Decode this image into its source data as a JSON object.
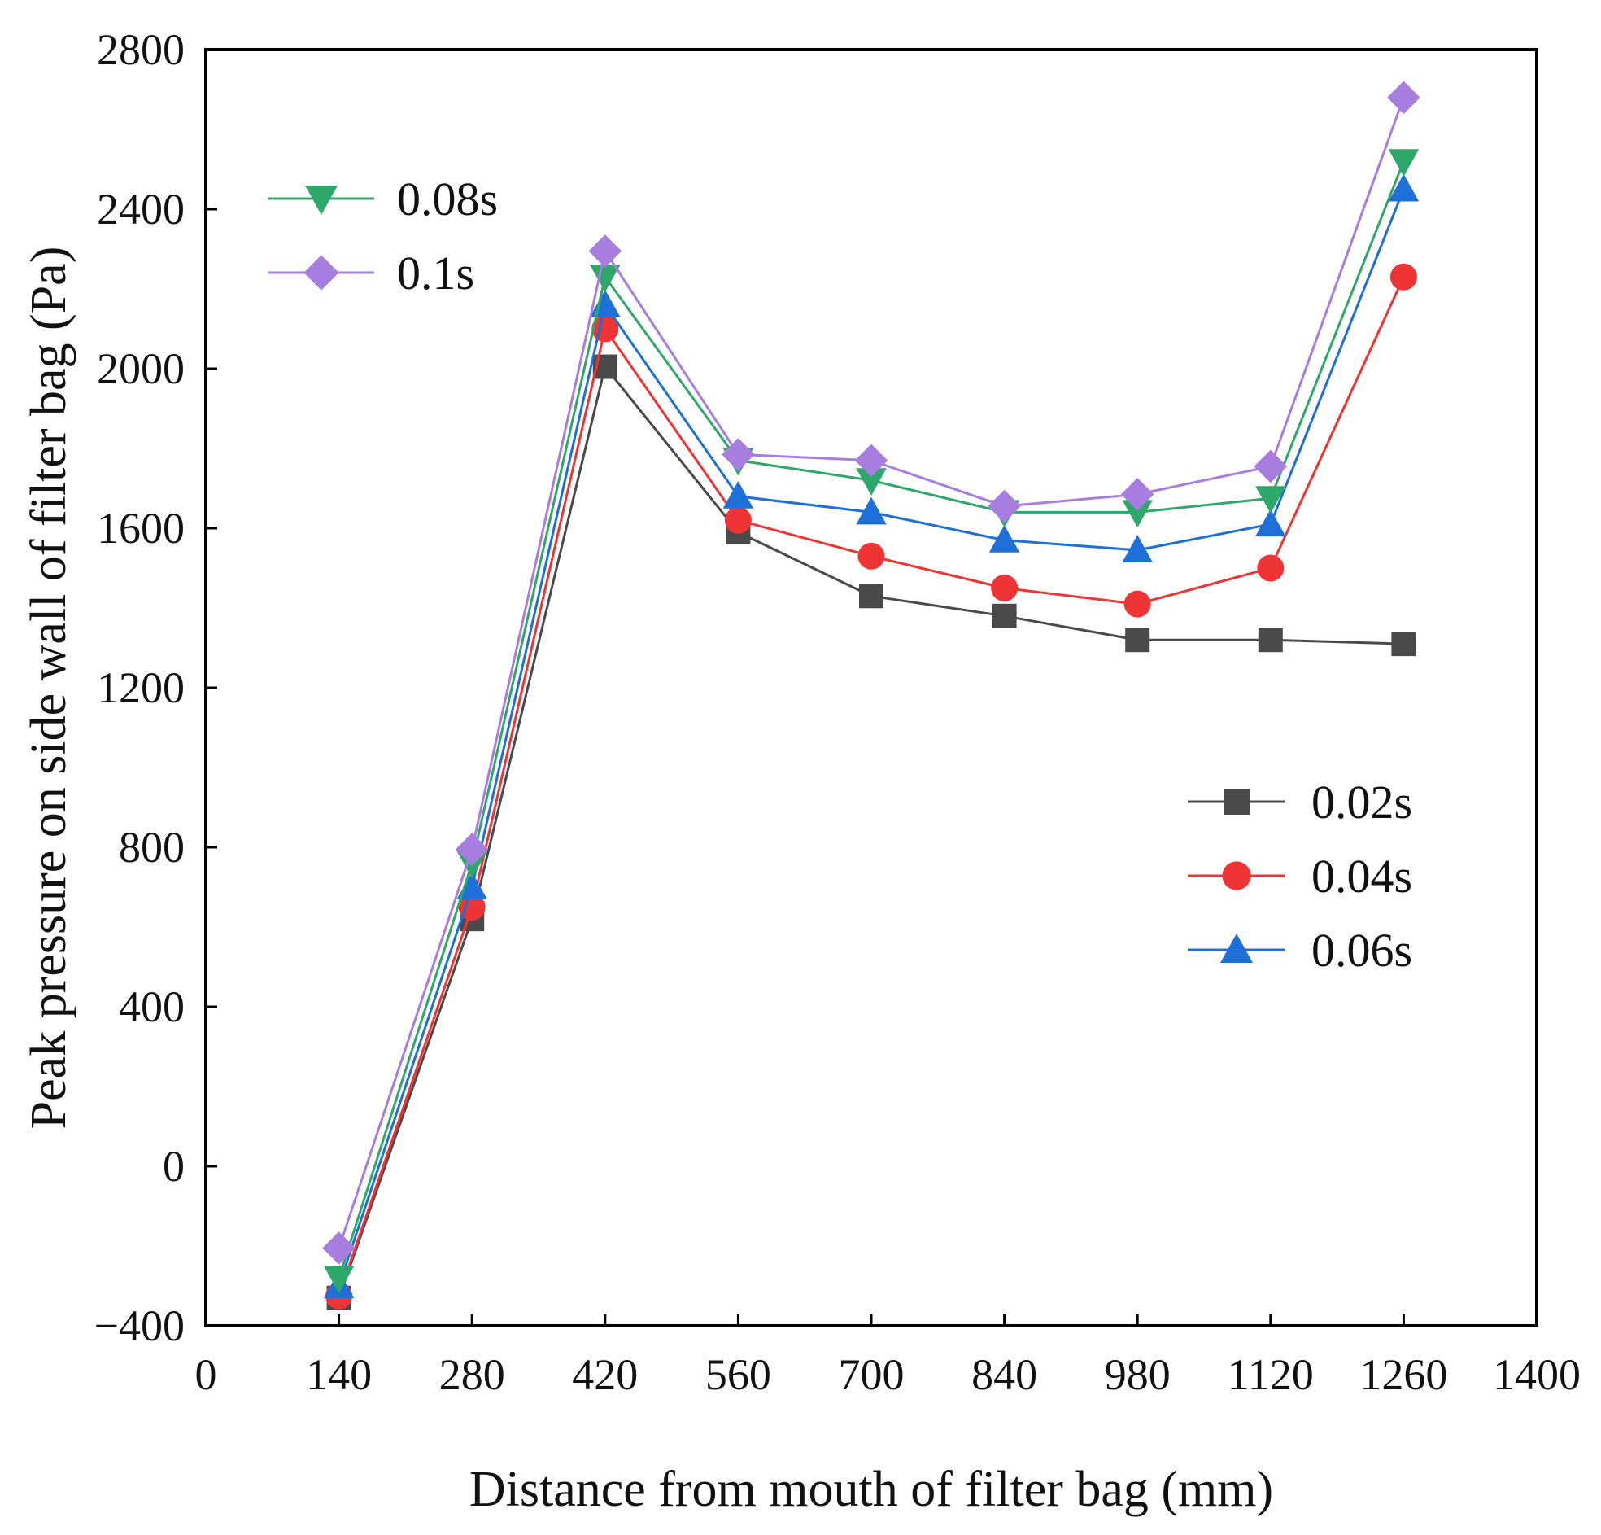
{
  "chart_data": {
    "type": "line",
    "title": "",
    "xlabel": "Distance from mouth of filter bag (mm)",
    "ylabel": "Peak pressure on side wall of filter bag (Pa)",
    "xlim": [
      0,
      1400
    ],
    "ylim": [
      -400,
      2800
    ],
    "xticks": [
      0,
      140,
      280,
      420,
      560,
      700,
      840,
      980,
      1120,
      1260,
      1400
    ],
    "yticks": [
      -400,
      0,
      400,
      800,
      1200,
      1600,
      2000,
      2400,
      2800
    ],
    "xtick_labels": [
      "0",
      "140",
      "280",
      "420",
      "560",
      "700",
      "840",
      "980",
      "1120",
      "1260",
      "1400"
    ],
    "ytick_labels": [
      "−400",
      "0",
      "400",
      "800",
      "1200",
      "1600",
      "2000",
      "2400",
      "2800"
    ],
    "grid": false,
    "x": [
      140,
      280,
      420,
      560,
      700,
      840,
      980,
      1120,
      1260
    ],
    "series": [
      {
        "name": "0.02s",
        "marker": "square",
        "color": "#4a4a4a",
        "values": [
          -330,
          620,
          2005,
          1590,
          1430,
          1380,
          1320,
          1320,
          1310
        ]
      },
      {
        "name": "0.04s",
        "marker": "circle",
        "color": "#ee3434",
        "values": [
          -325,
          650,
          2100,
          1620,
          1530,
          1450,
          1410,
          1500,
          2230
        ]
      },
      {
        "name": "0.06s",
        "marker": "triangle-up",
        "color": "#1f6fd8",
        "values": [
          -300,
          700,
          2160,
          1680,
          1640,
          1570,
          1545,
          1610,
          2450
        ]
      },
      {
        "name": "0.08s",
        "marker": "triangle-down",
        "color": "#2ea86a",
        "values": [
          -280,
          760,
          2230,
          1770,
          1720,
          1640,
          1640,
          1675,
          2520
        ]
      },
      {
        "name": "0.1s",
        "marker": "diamond",
        "color": "#a77de0",
        "values": [
          -205,
          795,
          2295,
          1785,
          1770,
          1655,
          1685,
          1755,
          2680
        ]
      }
    ],
    "legends": [
      {
        "position": "top-left",
        "entries": [
          "0.08s",
          "0.1s"
        ]
      },
      {
        "position": "middle-right",
        "entries": [
          "0.02s",
          "0.04s",
          "0.06s"
        ]
      }
    ]
  }
}
